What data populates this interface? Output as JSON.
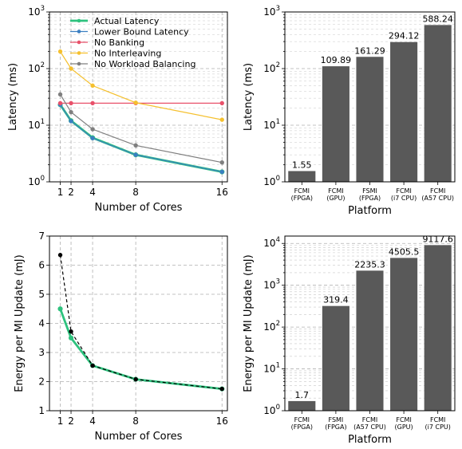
{
  "chart_data": [
    {
      "type": "line",
      "xlabel": "Number of Cores",
      "ylabel": "Latency (ms)",
      "yscale": "log",
      "xlim": [
        0,
        16.5
      ],
      "ylim": [
        1,
        1000
      ],
      "xticks": [
        1,
        2,
        4,
        8,
        16
      ],
      "yticks": [
        1,
        10,
        100,
        1000
      ],
      "ytick_labels": [
        "10^0",
        "10^1",
        "10^2",
        "10^3"
      ],
      "grid": true,
      "legend": "top-right",
      "x": [
        1,
        2,
        4,
        8,
        16
      ],
      "series": [
        {
          "name": "Actual Latency",
          "color": "#2ec27e",
          "values": [
            23,
            12,
            6,
            3,
            1.5
          ]
        },
        {
          "name": "Lower Bound Latency",
          "color": "#3a7fc1",
          "values": [
            23,
            11.8,
            5.9,
            3.0,
            1.5
          ]
        },
        {
          "name": "No Banking",
          "color": "#e8516a",
          "values": [
            24.5,
            24.5,
            24.5,
            24.5,
            24.5
          ]
        },
        {
          "name": "No Interleaving",
          "color": "#f5c02e",
          "values": [
            200,
            100,
            50,
            25,
            12.5
          ]
        },
        {
          "name": "No Workload Balancing",
          "color": "#7f7f7f",
          "values": [
            35,
            17,
            8.5,
            4.4,
            2.2
          ]
        }
      ]
    },
    {
      "type": "bar",
      "xlabel": "Platform",
      "ylabel": "Latency (ms)",
      "yscale": "log",
      "ylim": [
        1,
        1000
      ],
      "yticks": [
        1,
        10,
        100,
        1000
      ],
      "ytick_labels": [
        "10^0",
        "10^1",
        "10^2",
        "10^3"
      ],
      "grid": true,
      "bar_color": "#595959",
      "categories": [
        [
          "FCMI",
          "(FPGA)"
        ],
        [
          "FCMI",
          "(GPU)"
        ],
        [
          "FSMI",
          "(FPGA)"
        ],
        [
          "FCMI",
          "(i7 CPU)"
        ],
        [
          "FCMI",
          "(A57 CPU)"
        ]
      ],
      "values": [
        1.55,
        109.89,
        161.29,
        294.12,
        588.24
      ],
      "value_labels": [
        "1.55",
        "109.89",
        "161.29",
        "294.12",
        "588.24"
      ]
    },
    {
      "type": "line",
      "xlabel": "Number of Cores",
      "ylabel": "Energy per MI Update (mJ)",
      "yscale": "linear",
      "xlim": [
        0,
        16.5
      ],
      "ylim": [
        1,
        7
      ],
      "xticks": [
        1,
        2,
        4,
        8,
        16
      ],
      "yticks": [
        1,
        2,
        3,
        4,
        5,
        6,
        7
      ],
      "grid": true,
      "x": [
        1,
        2,
        4,
        8,
        16
      ],
      "series": [
        {
          "color": "#2ec27e",
          "values": [
            4.5,
            3.5,
            2.55,
            2.08,
            1.75
          ]
        },
        {
          "color": "#000000",
          "style": "dashed",
          "values": [
            6.35,
            3.72,
            2.55,
            2.08,
            1.75
          ]
        }
      ]
    },
    {
      "type": "bar",
      "xlabel": "Platform",
      "ylabel": "Energy per MI Update (mJ)",
      "yscale": "log",
      "ylim": [
        1,
        15000
      ],
      "yticks": [
        1,
        10,
        100,
        1000,
        10000
      ],
      "ytick_labels": [
        "10^0",
        "10^1",
        "10^2",
        "10^3",
        "10^4"
      ],
      "grid": true,
      "bar_color": "#595959",
      "categories": [
        [
          "FCMI",
          "(FPGA)"
        ],
        [
          "FSMI",
          "(FPGA)"
        ],
        [
          "FCMI",
          "(A57 CPU)"
        ],
        [
          "FCMI",
          "(GPU)"
        ],
        [
          "FCMI",
          "(i7 CPU)"
        ]
      ],
      "values": [
        1.7,
        319.4,
        2235.3,
        4505.5,
        9117.6
      ],
      "value_labels": [
        "1.7",
        "319.4",
        "2235.3",
        "4505.5",
        "9117.6"
      ]
    }
  ]
}
